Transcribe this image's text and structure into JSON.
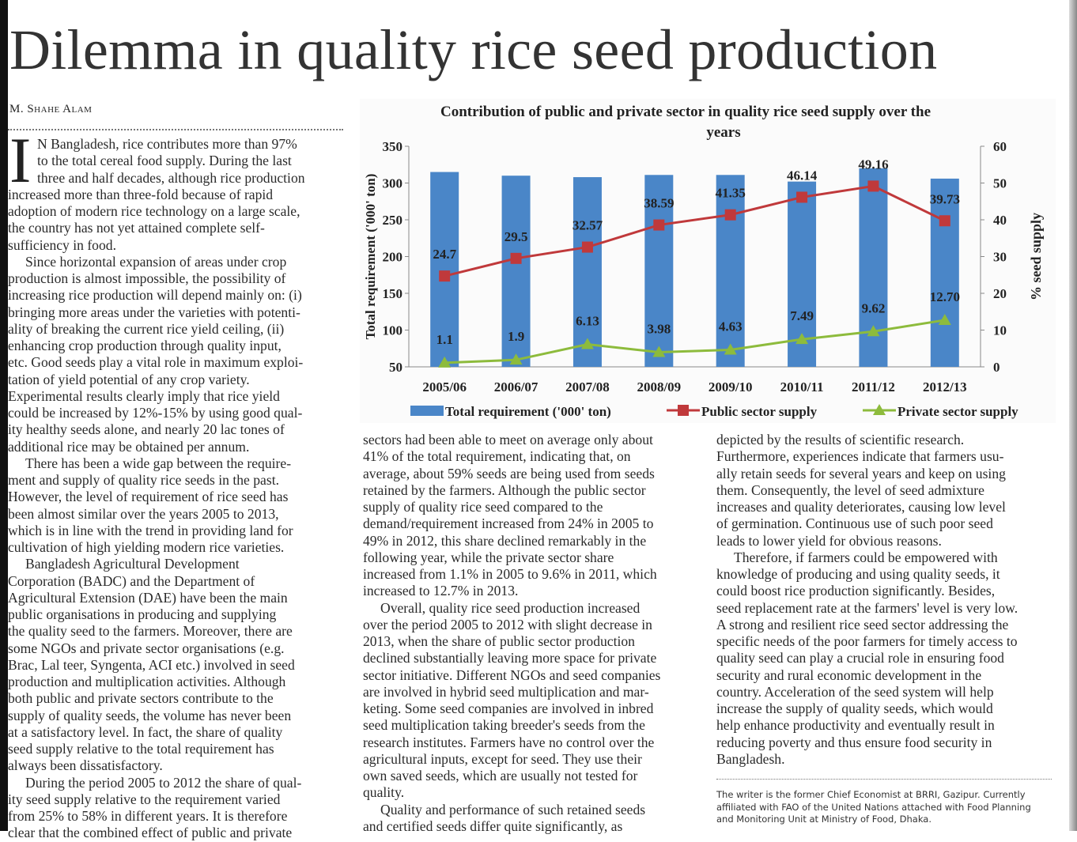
{
  "headline": "Dilemma in quality rice seed production",
  "byline": "M. Shahe Alam",
  "drop_cap": "I",
  "columns": [
    {
      "paragraphs": [
        [
          "N Bangladesh, rice contributes more than 97%",
          "to the total cereal food supply. During the last",
          "three and half decades, although rice production",
          "increased more than three-fold because of rapid",
          "adoption of modern rice technology on a large scale,",
          "the country has not yet attained complete self-",
          "sufficiency in food."
        ],
        [
          "Since horizontal expansion of areas under crop",
          "production is almost impossible, the possibility of",
          "increasing rice production will depend mainly on: (i)",
          "bringing more areas under the varieties with potenti-",
          "ality of breaking the current rice yield ceiling, (ii)",
          "enhancing crop production through quality input,",
          "etc. Good seeds play a vital role in maximum exploi-",
          "tation of yield potential of any crop variety.",
          "Experimental results clearly imply that rice yield",
          "could be increased by 12%-15% by using good qual-",
          "ity healthy seeds alone, and nearly 20 lac tones of",
          "additional rice may be obtained per annum."
        ],
        [
          "There has been a wide gap between the require-",
          "ment and supply of quality rice seeds in the past.",
          "However, the level of requirement of rice seed has",
          "been almost similar over the years 2005 to 2013,",
          "which is in line with the trend in providing land for",
          "cultivation of high yielding modern rice varieties."
        ],
        [
          "Bangladesh Agricultural Development",
          "Corporation (BADC) and the Department of",
          "Agricultural Extension (DAE) have been the main",
          "public organisations in producing and supplying",
          "the quality seed to the farmers. Moreover, there are",
          "some NGOs and private sector organisations (e.g.",
          "Brac, Lal teer, Syngenta, ACI etc.) involved in seed",
          "production and multiplication activities. Although",
          "both public and private sectors contribute to the",
          "supply of quality seeds, the volume has never been",
          "at a satisfactory level. In fact, the share of quality",
          "seed supply relative to the total requirement has",
          "always been dissatisfactory."
        ],
        [
          "During the period 2005 to 2012 the share of qual-",
          "ity seed supply relative to the requirement varied",
          "from 25% to 58% in different years. It is therefore",
          "clear that the combined effect of public and private"
        ]
      ]
    },
    {
      "paragraphs": [
        [
          "sectors had been able to meet on average only about",
          "41% of the total requirement, indicating that, on",
          "average, about 59% seeds are being used from seeds",
          "retained by the farmers. Although the public sector",
          "supply of quality rice seed compared to the",
          "demand/requirement increased from 24% in 2005 to",
          "49% in 2012, this share declined remarkably in the",
          "following year, while the private sector share",
          "increased from 1.1% in 2005 to 9.6% in 2011, which",
          "increased to 12.7% in 2013."
        ],
        [
          "Overall, quality rice seed production increased",
          "over the period 2005 to 2012 with slight decrease in",
          "2013, when the share of public sector production",
          "declined substantially leaving more space for private",
          "sector initiative. Different NGOs and seed companies",
          "are involved in hybrid seed multiplication and mar-",
          "keting. Some seed companies are involved in inbred",
          "seed multiplication taking breeder's seeds from the",
          "research institutes. Farmers have no control over the",
          "agricultural inputs, except for seed. They use their",
          "own saved seeds, which are usually not tested for",
          "quality."
        ],
        [
          "Quality and performance of such retained seeds",
          "and certified seeds differ quite significantly, as"
        ]
      ]
    },
    {
      "paragraphs": [
        [
          "depicted by the results of scientific research.",
          "Furthermore, experiences indicate that farmers usu-",
          "ally retain seeds for several years and keep on using",
          "them. Consequently, the level of seed admixture",
          "increases and quality deteriorates, causing low level",
          "of germination. Continuous use of such poor seed",
          "leads to lower yield for obvious reasons."
        ],
        [
          "Therefore, if farmers could be empowered with",
          "knowledge of producing and using quality seeds, it",
          "could boost rice production significantly. Besides,",
          "seed replacement rate at the farmers' level is very low.",
          "A strong and resilient rice seed sector addressing the",
          "specific needs of the poor farmers for timely access to",
          "quality seed can play a crucial role in ensuring food",
          "security and rural economic development in the",
          "country. Acceleration of the seed system will help",
          "increase the supply of quality seeds, which would",
          "help enhance productivity and eventually result in",
          "reducing poverty and thus ensure food security in",
          "Bangladesh."
        ]
      ]
    }
  ],
  "footnote": [
    "The writer is the former Chief Economist at BRRI, Gazipur. Currently",
    "affiliated with FAO of the United Nations attached with Food Planning",
    "and Monitoring Unit at Ministry of Food, Dhaka."
  ],
  "chart_data": {
    "type": "bar",
    "title": "Contribution of public and private sector in quality rice seed supply over the years",
    "categories": [
      "2005/06",
      "2006/07",
      "2007/08",
      "2008/09",
      "2009/10",
      "2010/11",
      "2011/12",
      "2012/13"
    ],
    "series": [
      {
        "name": "Total requirement ('000' ton)",
        "type": "bar",
        "axis": "left",
        "color": "#4a86c8",
        "values": [
          315,
          310,
          308,
          311,
          311,
          302,
          320,
          306
        ]
      },
      {
        "name": "Public sector supply",
        "type": "line",
        "axis": "right",
        "color": "#c0393b",
        "marker": "square",
        "values": [
          24.7,
          29.5,
          32.57,
          38.59,
          41.35,
          46.14,
          49.16,
          39.73
        ],
        "labels": [
          "24.7",
          "29.5",
          "32.57",
          "38.59",
          "41.35",
          "46.14",
          "49.16",
          "39.73"
        ]
      },
      {
        "name": "Private sector supply",
        "type": "line",
        "axis": "right",
        "color": "#8dbb3c",
        "marker": "triangle",
        "values": [
          1.1,
          1.9,
          6.13,
          3.98,
          4.63,
          7.49,
          9.62,
          12.7
        ],
        "labels": [
          "1.1",
          "1.9",
          "6.13",
          "3.98",
          "4.63",
          "7.49",
          "9.62",
          "12.70"
        ]
      }
    ],
    "ylabel": "Total requirement  ('000' ton)",
    "y2label": "% seed supply",
    "ylim": [
      50,
      350
    ],
    "yticks": [
      "50",
      "100",
      "150",
      "200",
      "250",
      "300",
      "350"
    ],
    "y2lim": [
      0,
      60
    ],
    "y2ticks": [
      "0",
      "10",
      "20",
      "30",
      "40",
      "50",
      "60"
    ],
    "grid": false,
    "legend": "bottom"
  }
}
